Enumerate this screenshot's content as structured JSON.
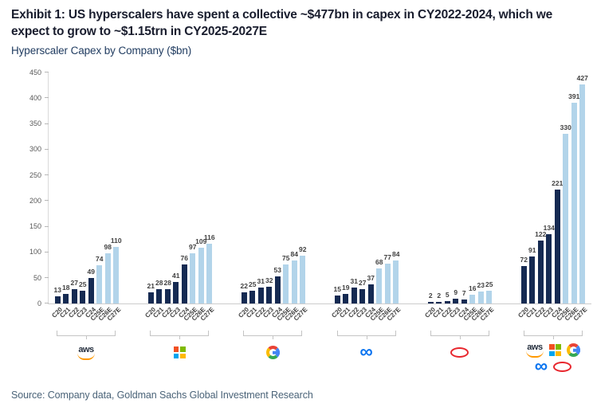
{
  "header": {
    "exhibit_title": "Exhibit 1: US hyperscalers have spent a collective ~$477bn in capex in CY2022-2024, which we expect to grow to ~$1.15trn in CY2025-2027E",
    "chart_subtitle": "Hyperscaler Capex by Company ($bn)"
  },
  "chart_data": {
    "type": "bar",
    "title": "Hyperscaler Capex by Company ($bn)",
    "categories": [
      "C20",
      "C21",
      "C22",
      "C23",
      "C24",
      "C25E",
      "C26E",
      "C27E"
    ],
    "series": [
      {
        "name": "AWS",
        "logo": "aws",
        "values": [
          13,
          18,
          27,
          25,
          49,
          74,
          98,
          110
        ]
      },
      {
        "name": "Microsoft",
        "logo": "microsoft",
        "values": [
          21,
          28,
          28,
          41,
          76,
          97,
          109,
          116
        ]
      },
      {
        "name": "Google",
        "logo": "google",
        "values": [
          22,
          25,
          31,
          32,
          53,
          75,
          84,
          92
        ]
      },
      {
        "name": "Meta",
        "logo": "meta",
        "values": [
          15,
          19,
          31,
          27,
          37,
          68,
          77,
          84
        ]
      },
      {
        "name": "Oracle",
        "logo": "oracle",
        "values": [
          2,
          2,
          5,
          9,
          7,
          16,
          23,
          25
        ]
      },
      {
        "name": "Total",
        "logo": "all",
        "values": [
          72,
          91,
          122,
          134,
          221,
          330,
          391,
          427
        ]
      }
    ],
    "ylim": [
      0,
      450
    ],
    "ytick_step": 50,
    "grid": false,
    "legend": "none",
    "actual_bar_color": "#152a52",
    "estimate_bar_color": "#b2d4ea",
    "estimate_from_index": 5
  },
  "footer": {
    "source": "Source: Company data, Goldman Sachs Global Investment Research"
  }
}
